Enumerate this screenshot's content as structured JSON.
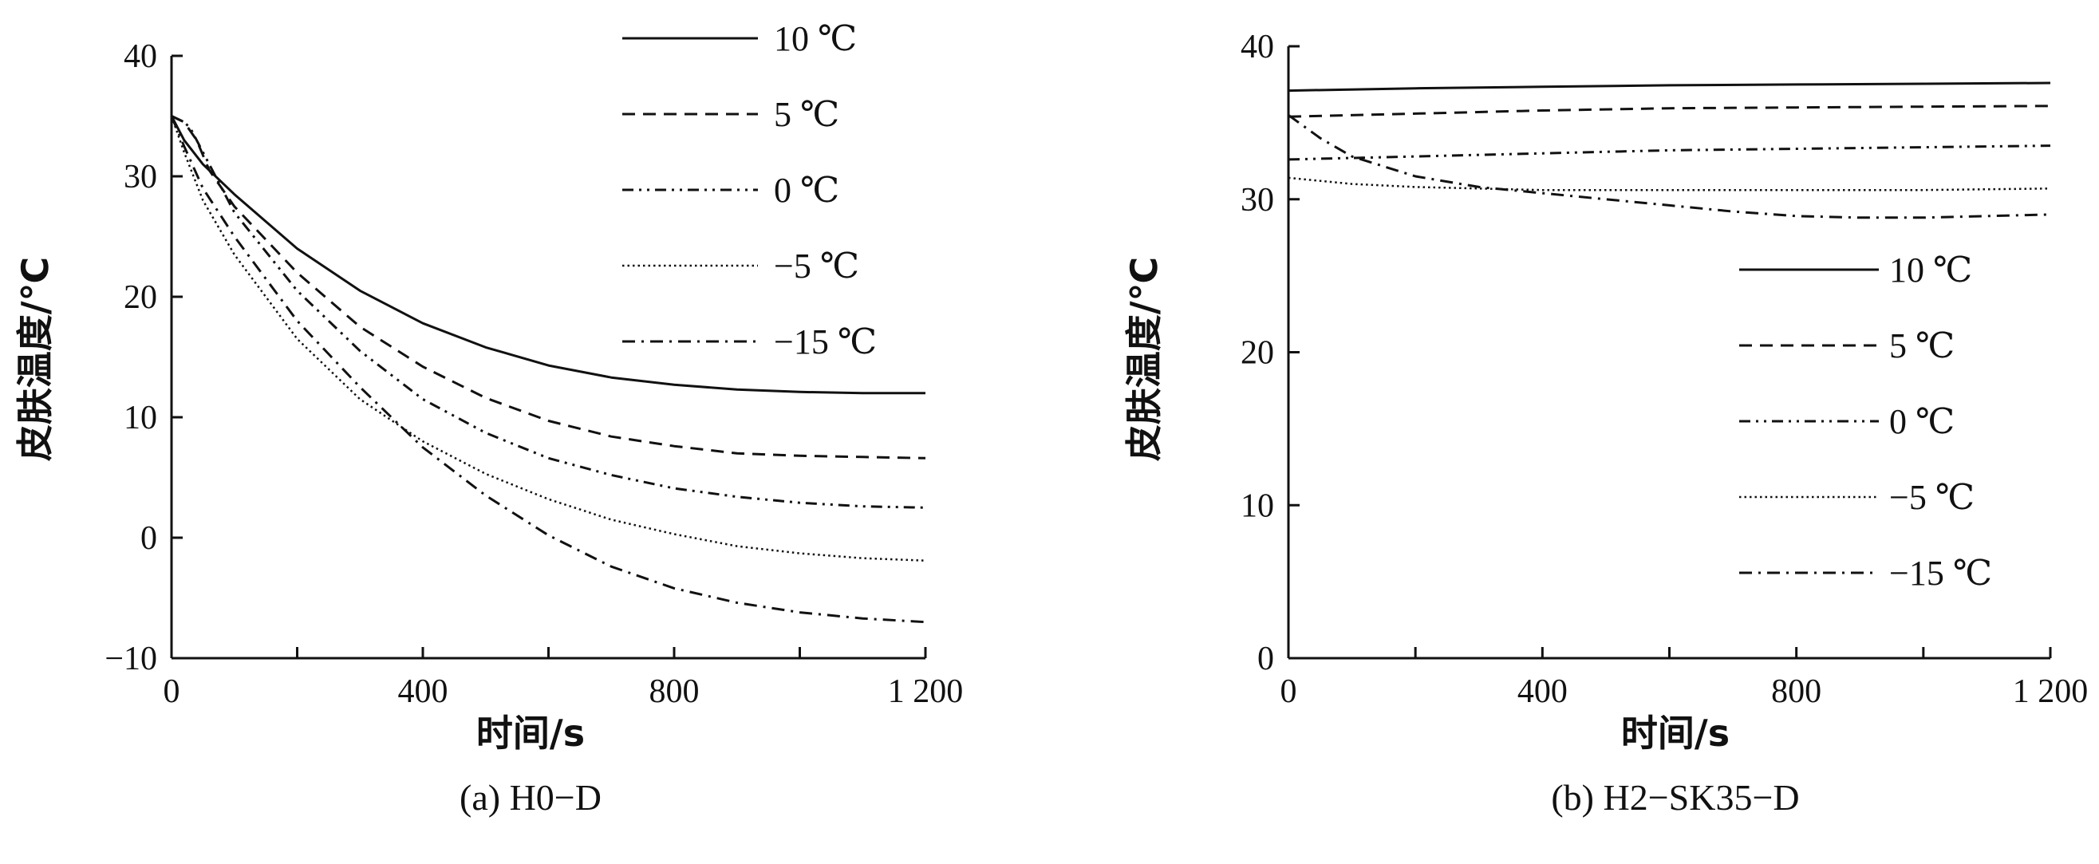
{
  "chart_data": [
    {
      "type": "line",
      "caption": "(a) H0−D",
      "xlabel": "时间/s",
      "ylabel": "皮肤温度/℃",
      "xlim": [
        0,
        1200
      ],
      "ylim": [
        -10,
        40
      ],
      "xticks": [
        0,
        400,
        800,
        1200
      ],
      "xtick_labels": [
        "0",
        "400",
        "800",
        "1 200"
      ],
      "yticks": [
        -10,
        0,
        10,
        20,
        30,
        40
      ],
      "ytick_labels": [
        "−10",
        "0",
        "10",
        "20",
        "30",
        "40"
      ],
      "legend_position": "top-right",
      "series": [
        {
          "name": "10 ℃",
          "style": "solid",
          "x": [
            0,
            20,
            50,
            100,
            200,
            300,
            400,
            500,
            600,
            700,
            800,
            900,
            1000,
            1100,
            1200
          ],
          "y": [
            35,
            33,
            31,
            28.5,
            24,
            20.5,
            17.8,
            15.8,
            14.3,
            13.3,
            12.7,
            12.3,
            12.1,
            12.0,
            12.0
          ]
        },
        {
          "name": "5 ℃",
          "style": "dashed",
          "x": [
            0,
            20,
            40,
            60,
            100,
            200,
            300,
            400,
            500,
            600,
            700,
            800,
            900,
            1000,
            1100,
            1200
          ],
          "y": [
            35,
            34.5,
            33,
            30.5,
            27.5,
            22,
            17.5,
            14.2,
            11.6,
            9.7,
            8.4,
            7.6,
            7.0,
            6.8,
            6.7,
            6.6
          ]
        },
        {
          "name": "0 ℃",
          "style": "dash-dot-dot",
          "x": [
            0,
            20,
            30,
            50,
            100,
            200,
            300,
            400,
            500,
            600,
            700,
            800,
            900,
            1000,
            1100,
            1200
          ],
          "y": [
            35,
            34.5,
            34,
            32,
            27,
            20.5,
            15.5,
            11.5,
            8.7,
            6.6,
            5.2,
            4.1,
            3.4,
            2.9,
            2.6,
            2.5
          ]
        },
        {
          "name": "−5 ℃",
          "style": "dotted",
          "x": [
            0,
            20,
            50,
            100,
            200,
            300,
            400,
            500,
            600,
            700,
            800,
            900,
            1000,
            1100,
            1200
          ],
          "y": [
            35,
            32,
            28,
            23.5,
            16.5,
            11.5,
            8.0,
            5.3,
            3.2,
            1.5,
            0.3,
            -0.7,
            -1.3,
            -1.7,
            -1.9
          ]
        },
        {
          "name": "−15 ℃",
          "style": "dash-dot",
          "x": [
            0,
            20,
            50,
            100,
            200,
            300,
            400,
            500,
            600,
            700,
            800,
            900,
            1000,
            1100,
            1200
          ],
          "y": [
            35,
            32.5,
            29,
            25,
            18,
            12.5,
            7.5,
            3.5,
            0.2,
            -2.4,
            -4.2,
            -5.4,
            -6.2,
            -6.7,
            -7.0
          ]
        }
      ]
    },
    {
      "type": "line",
      "caption": "(b) H2−SK35−D",
      "xlabel": "时间/s",
      "ylabel": "皮肤温度/℃",
      "xlim": [
        0,
        1200
      ],
      "ylim": [
        0,
        40
      ],
      "xticks": [
        0,
        400,
        800,
        1200
      ],
      "xtick_labels": [
        "0",
        "400",
        "800",
        "1 200"
      ],
      "yticks": [
        0,
        10,
        20,
        30,
        40
      ],
      "ytick_labels": [
        "0",
        "10",
        "20",
        "30",
        "40"
      ],
      "legend_position": "right",
      "series": [
        {
          "name": "10 ℃",
          "style": "solid",
          "x": [
            0,
            200,
            400,
            600,
            800,
            1000,
            1200
          ],
          "y": [
            37.1,
            37.25,
            37.35,
            37.45,
            37.5,
            37.55,
            37.6
          ]
        },
        {
          "name": "5 ℃",
          "style": "dashed",
          "x": [
            0,
            200,
            400,
            600,
            800,
            1000,
            1200
          ],
          "y": [
            35.4,
            35.6,
            35.8,
            35.95,
            36.0,
            36.05,
            36.1
          ]
        },
        {
          "name": "0 ℃",
          "style": "dash-dot-dot",
          "x": [
            0,
            200,
            400,
            600,
            800,
            1000,
            1200
          ],
          "y": [
            32.6,
            32.8,
            33.0,
            33.2,
            33.3,
            33.4,
            33.5
          ]
        },
        {
          "name": "−5 ℃",
          "style": "dotted",
          "x": [
            0,
            100,
            200,
            300,
            400,
            600,
            800,
            1000,
            1200
          ],
          "y": [
            31.4,
            31.0,
            30.8,
            30.7,
            30.6,
            30.6,
            30.6,
            30.6,
            30.7
          ]
        },
        {
          "name": "−15 ℃",
          "style": "dash-dot",
          "x": [
            0,
            50,
            100,
            200,
            300,
            400,
            500,
            600,
            700,
            800,
            900,
            1000,
            1100,
            1200
          ],
          "y": [
            35.5,
            34.0,
            32.8,
            31.5,
            30.8,
            30.4,
            30.0,
            29.6,
            29.2,
            28.9,
            28.8,
            28.8,
            28.9,
            29.0
          ]
        }
      ]
    }
  ]
}
